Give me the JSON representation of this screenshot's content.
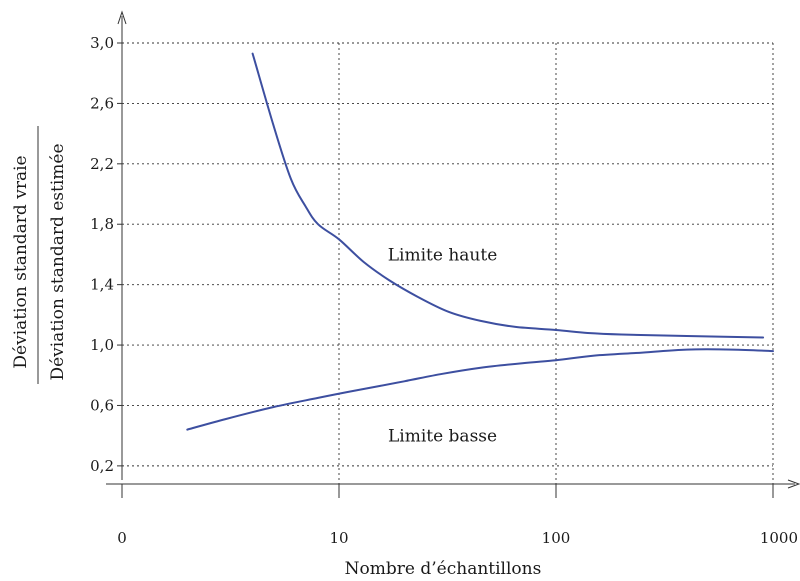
{
  "chart_data": {
    "type": "line",
    "xscale": "log",
    "xlabel": "Nombre d’échantillons",
    "ylabel_top": "Déviation standard vraie",
    "ylabel_bottom": "Déviation standard estimée",
    "xlim": [
      1,
      1000
    ],
    "ylim": [
      0.08,
      3.0
    ],
    "x_ticks": [
      {
        "value": 1,
        "label": "0"
      },
      {
        "value": 10,
        "label": "10"
      },
      {
        "value": 100,
        "label": "100"
      },
      {
        "value": 1000,
        "label": "1000"
      }
    ],
    "y_ticks": [
      {
        "value": 0.2,
        "label": "0,2"
      },
      {
        "value": 0.6,
        "label": "0,6"
      },
      {
        "value": 1.0,
        "label": "1,0"
      },
      {
        "value": 1.4,
        "label": "1,4"
      },
      {
        "value": 1.8,
        "label": "1,8"
      },
      {
        "value": 2.2,
        "label": "2,2"
      },
      {
        "value": 2.6,
        "label": "2,6"
      },
      {
        "value": 3.0,
        "label": "3,0"
      }
    ],
    "grid": true,
    "series": [
      {
        "id": "upper",
        "color": "#3d4fa0",
        "x": [
          4,
          5,
          6,
          7,
          8,
          10,
          13,
          17,
          23,
          32,
          45,
          65,
          100,
          140,
          200,
          400,
          900
        ],
        "y": [
          2.93,
          2.45,
          2.1,
          1.92,
          1.8,
          1.7,
          1.55,
          1.43,
          1.32,
          1.22,
          1.16,
          1.12,
          1.1,
          1.08,
          1.07,
          1.06,
          1.05
        ]
      },
      {
        "id": "lower",
        "color": "#3d4fa0",
        "x": [
          2,
          3,
          5,
          8,
          12,
          20,
          30,
          45,
          70,
          100,
          150,
          250,
          400,
          650,
          1000
        ],
        "y": [
          0.44,
          0.51,
          0.59,
          0.65,
          0.7,
          0.76,
          0.81,
          0.85,
          0.88,
          0.9,
          0.93,
          0.95,
          0.97,
          0.97,
          0.96
        ]
      }
    ],
    "annotations": [
      {
        "text": "Limite haute",
        "x": 30,
        "y": 1.6
      },
      {
        "text": "Limite basse",
        "x": 30,
        "y": 0.4
      }
    ]
  }
}
